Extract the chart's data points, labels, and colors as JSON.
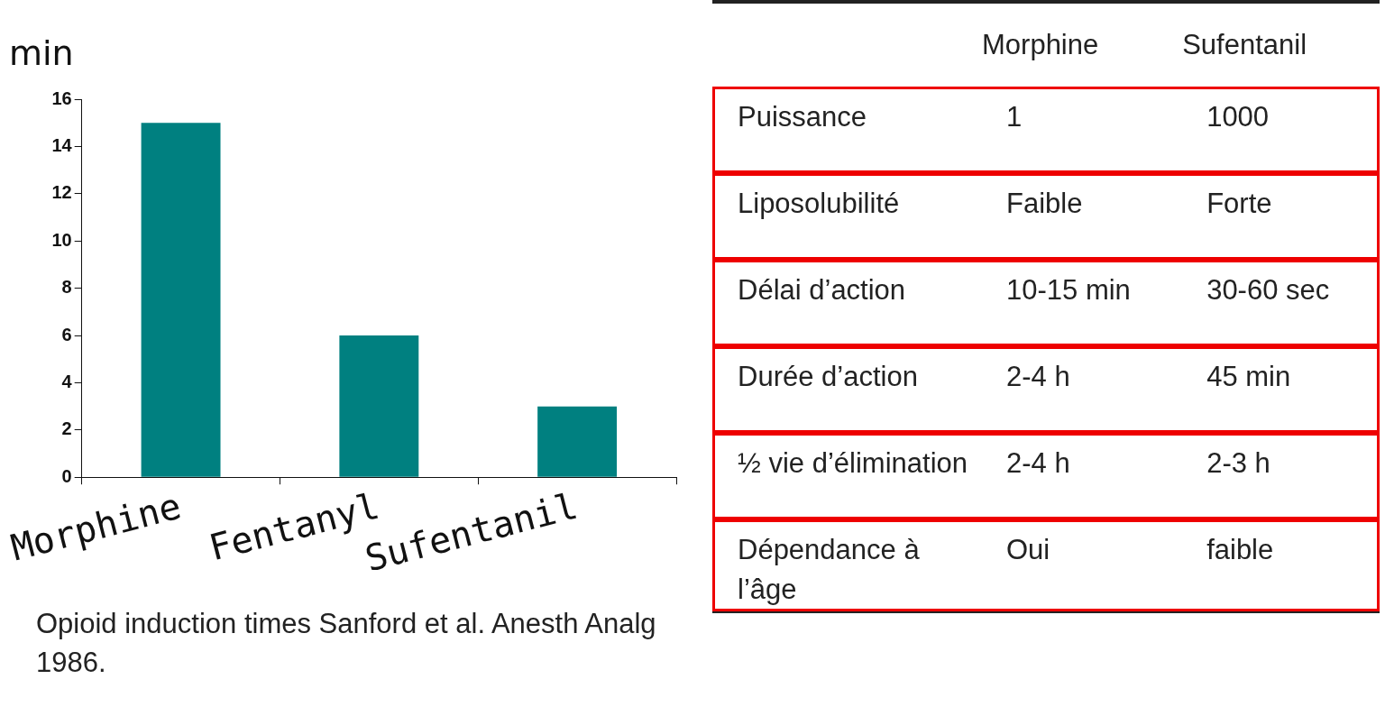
{
  "chart_data": [
    {
      "type": "bar",
      "ylabel": "min",
      "categories": [
        "Morphine",
        "Fentanyl",
        "Sufentanil"
      ],
      "values": [
        15,
        6,
        3
      ],
      "color": "#008080",
      "ylim": [
        0,
        16
      ],
      "yticks": [
        0,
        2,
        4,
        6,
        8,
        10,
        12,
        14,
        16
      ],
      "grid": false,
      "legend": false,
      "annotations": [
        "Opioid induction times Sanford et al. Anesth Analg 1986."
      ]
    },
    {
      "type": "other",
      "categories": [
        "Morphine",
        "Sufentanil"
      ],
      "y_categories": [
        "Puissance",
        "Liposolubilité",
        "Délai d’action",
        "Durée d’action",
        "½ vie d’élimination",
        "Dépendance à l’âge"
      ],
      "cell_labels": [
        [
          "1",
          "1000"
        ],
        [
          "Faible",
          "Forte"
        ],
        [
          "10-15 min",
          "30-60 sec"
        ],
        [
          "2-4 h",
          "45 min"
        ],
        [
          "2-4 h",
          "2-3 h"
        ],
        [
          "Oui",
          "faible"
        ]
      ]
    }
  ]
}
